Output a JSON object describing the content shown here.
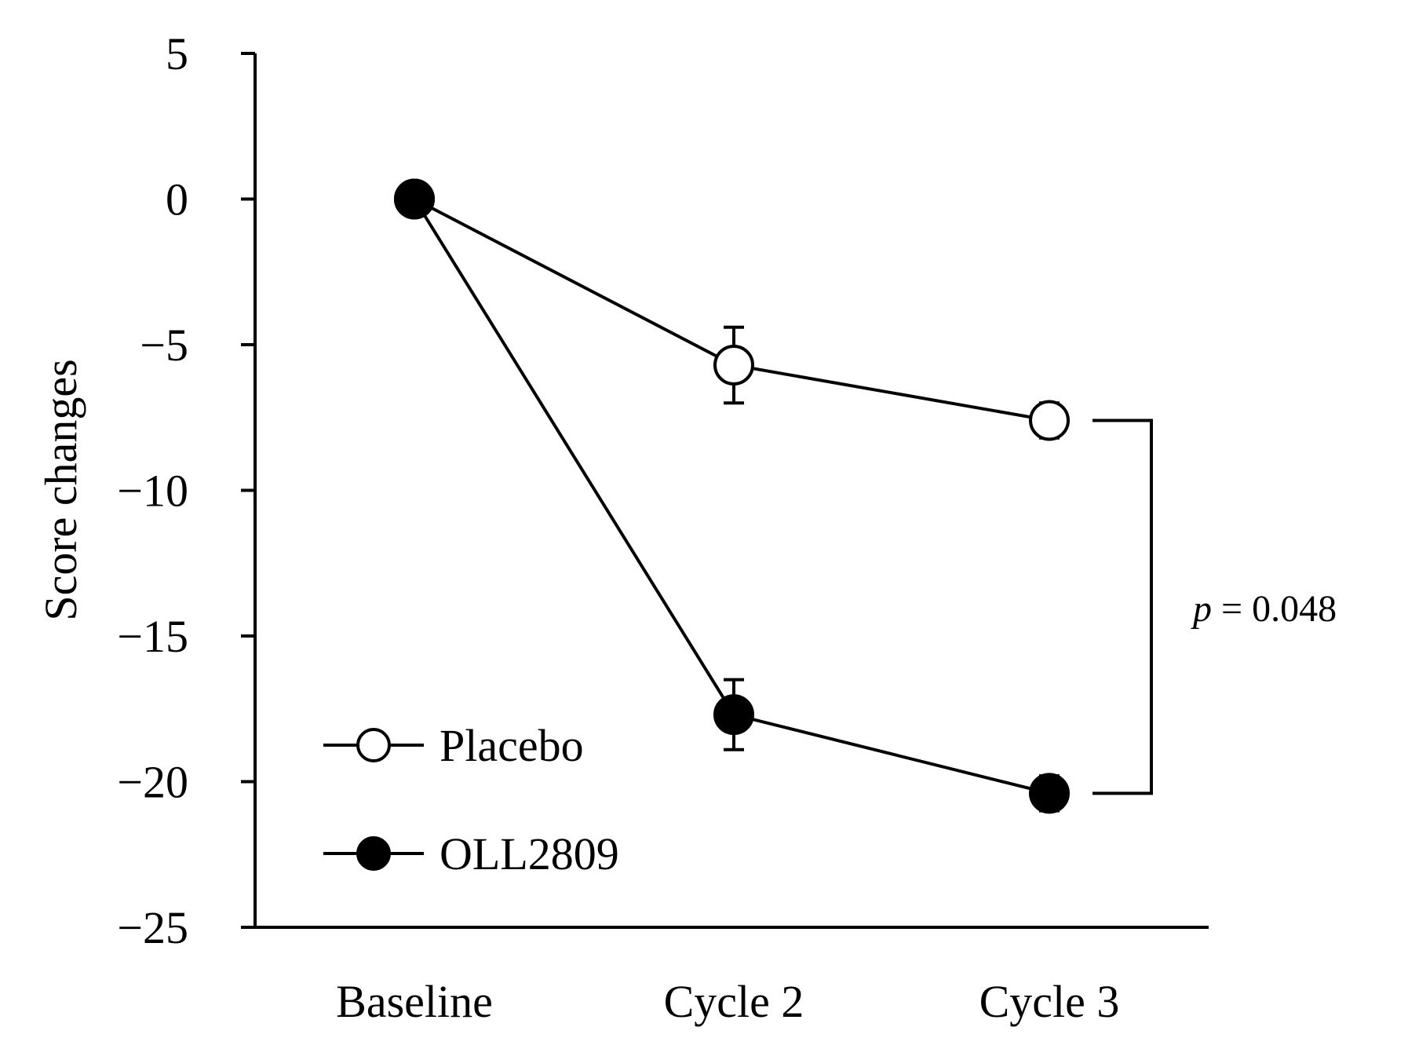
{
  "chart_data": {
    "type": "line",
    "xlabel": "",
    "ylabel": "Score changes",
    "ylim": [
      -25,
      5
    ],
    "yticks": [
      5,
      0,
      -5,
      -10,
      -15,
      -20,
      -25
    ],
    "ytick_labels": [
      "5",
      "0",
      "−5",
      "−10",
      "−15",
      "−20",
      "−25"
    ],
    "categories": [
      "Baseline",
      "Cycle 2",
      "Cycle 3"
    ],
    "series": [
      {
        "name": "Placebo",
        "marker": "open-circle",
        "values": [
          0,
          -5.7,
          -7.6
        ],
        "error": [
          0,
          1.3,
          0.6
        ]
      },
      {
        "name": "OLL2809",
        "marker": "filled-circle",
        "values": [
          0,
          -17.7,
          -20.4
        ],
        "error": [
          0,
          1.2,
          0.6
        ]
      }
    ],
    "annotation": {
      "symbol": "p",
      "text": " = 0.048",
      "between_series": [
        "Placebo",
        "OLL2809"
      ],
      "at_category": "Cycle 3"
    },
    "legend_position": "bottom-left",
    "grid": false,
    "colors": {
      "line": "#000000",
      "open_fill": "#ffffff",
      "filled_fill": "#000000"
    }
  }
}
